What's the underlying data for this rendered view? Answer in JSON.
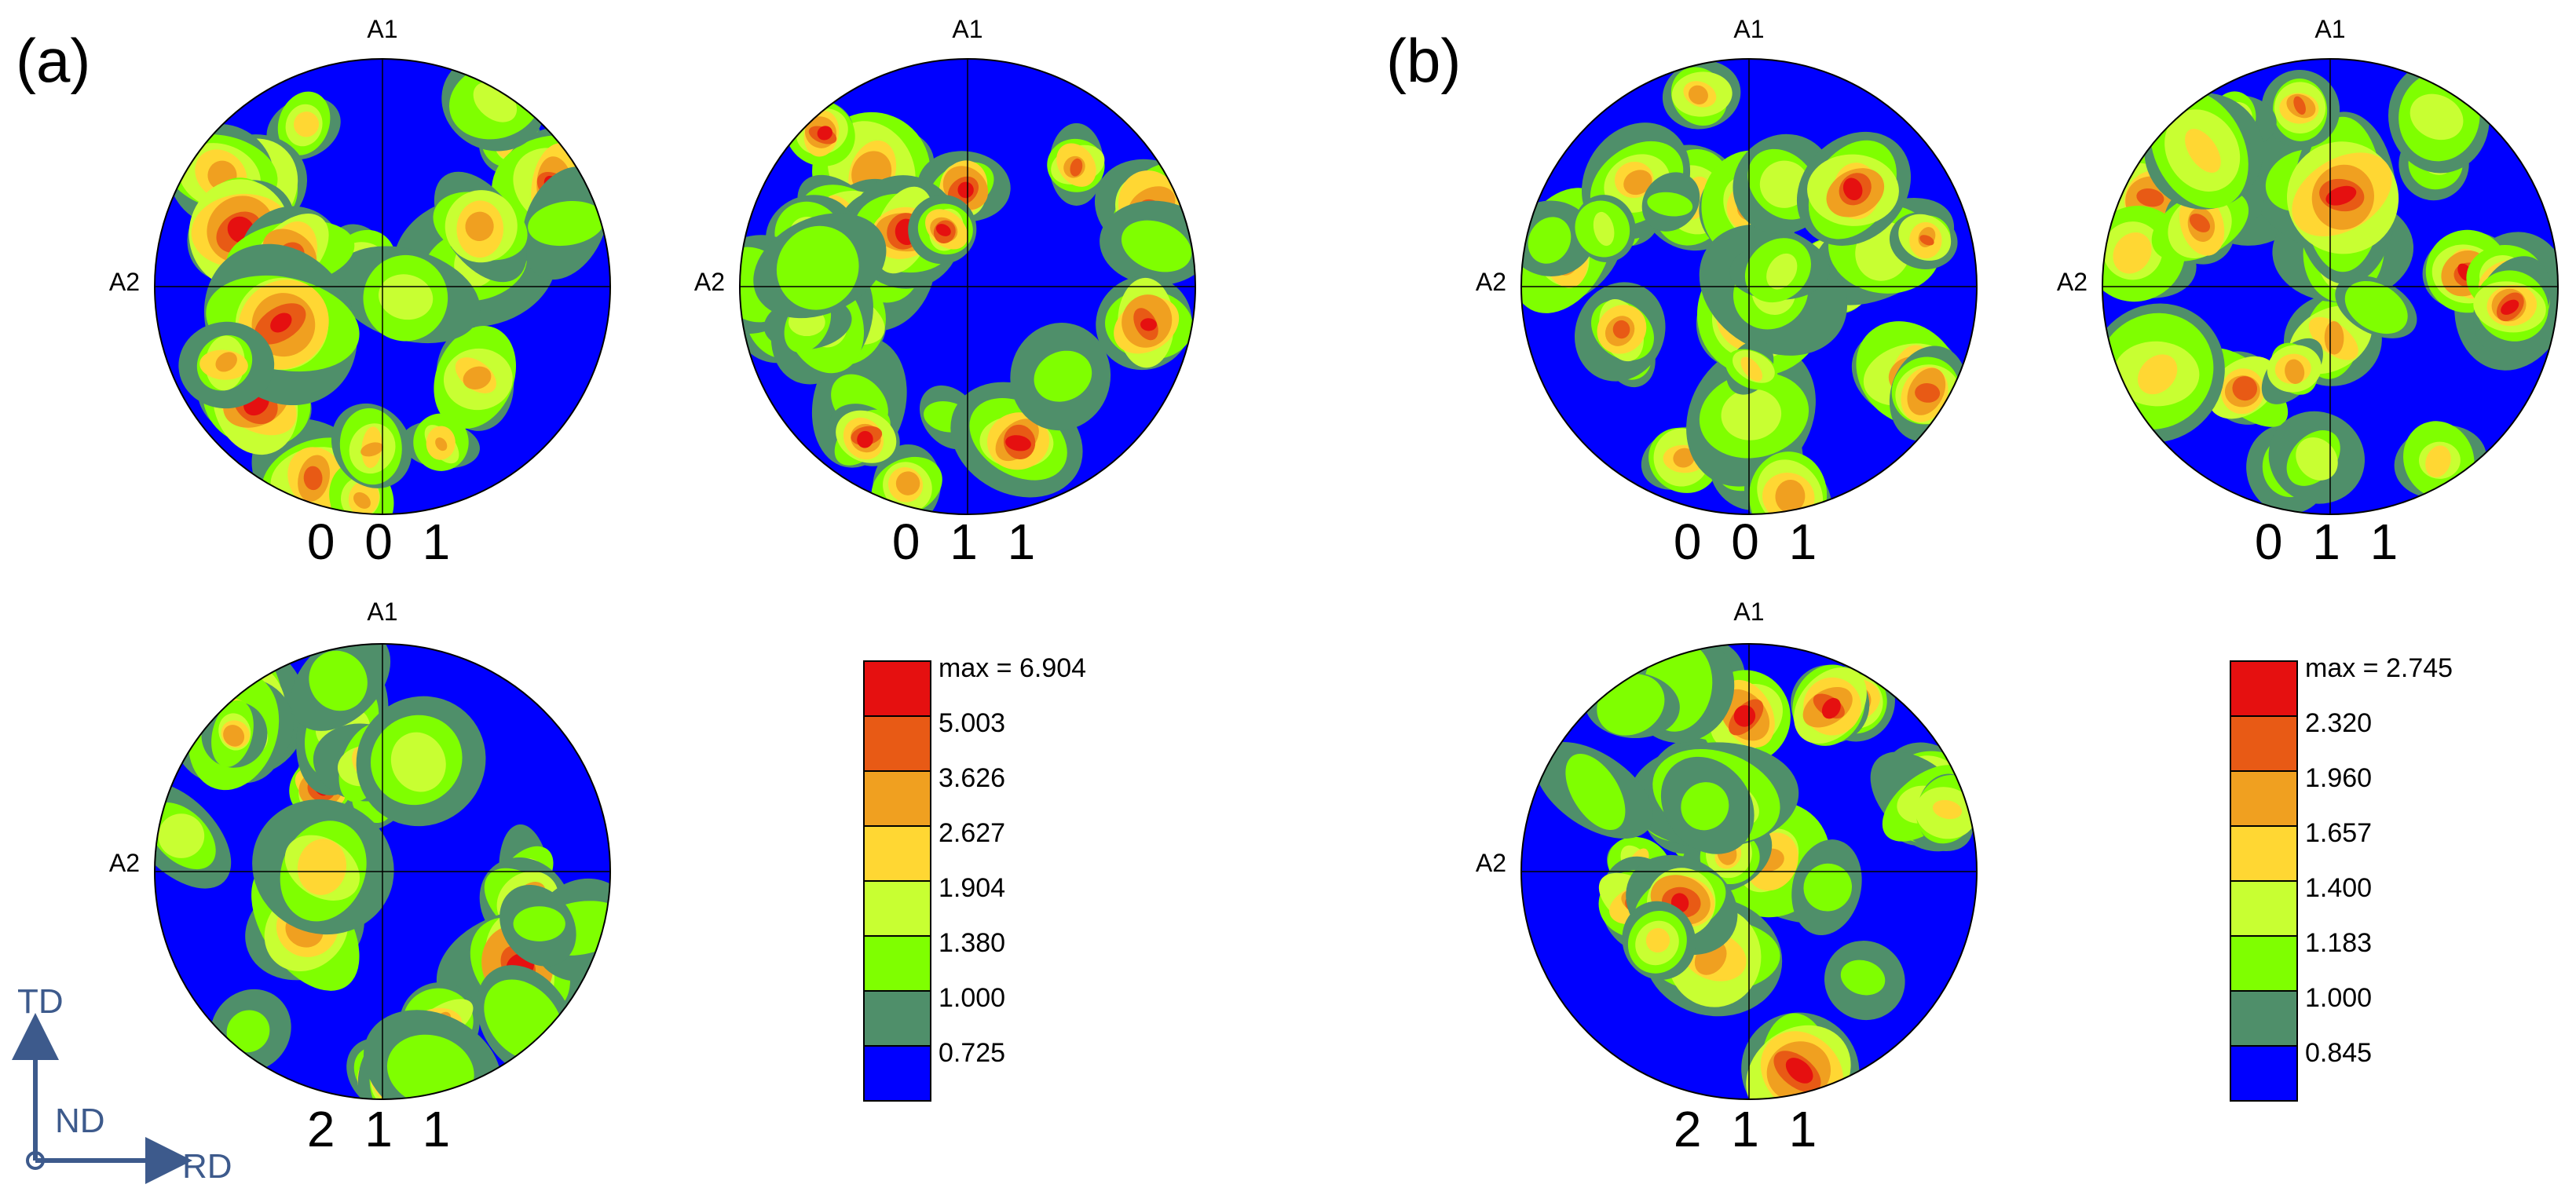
{
  "panels": [
    {
      "label": "(a)",
      "pole_figures": [
        {
          "hkl": "0 0 1",
          "top_axis": "A1",
          "left_axis": "A2"
        },
        {
          "hkl": "0 1 1",
          "top_axis": "A1",
          "left_axis": "A2"
        },
        {
          "hkl": "2 1 1",
          "top_axis": "A1",
          "left_axis": "A2"
        }
      ],
      "legend": {
        "max_label": "max = 6.904",
        "levels": [
          "5.003",
          "3.626",
          "2.627",
          "1.904",
          "1.380",
          "1.000",
          "0.725"
        ]
      }
    },
    {
      "label": "(b)",
      "pole_figures": [
        {
          "hkl": "0 0 1",
          "top_axis": "A1",
          "left_axis": "A2"
        },
        {
          "hkl": "0 1 1",
          "top_axis": "A1",
          "left_axis": "A2"
        },
        {
          "hkl": "2 1 1",
          "top_axis": "A1",
          "left_axis": "A2"
        }
      ],
      "legend": {
        "max_label": "max = 2.745",
        "levels": [
          "2.320",
          "1.960",
          "1.657",
          "1.400",
          "1.183",
          "1.000",
          "0.845"
        ]
      }
    }
  ],
  "directions": {
    "td": "TD",
    "nd": "ND",
    "rd": "RD"
  },
  "colors": {
    "level_1": "#0000ff",
    "level_2": "#4f8f6a",
    "level_3": "#7fff00",
    "level_4": "#c8ff32",
    "level_5": "#ffd733",
    "level_6": "#f0a020",
    "level_7": "#e85a15",
    "level_8": "#e51010",
    "direction_arrows": "#3d5a8c"
  }
}
